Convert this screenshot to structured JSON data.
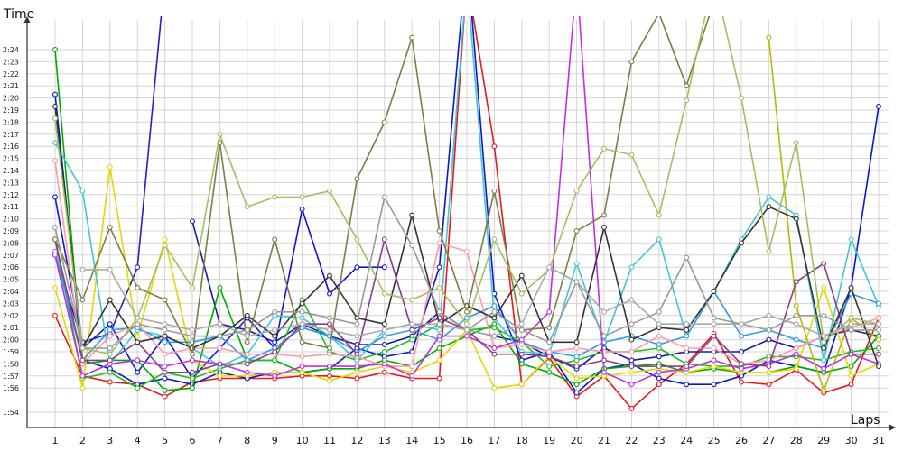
{
  "chart_data": {
    "type": "line",
    "ylabel": "Time",
    "xlabel": "Laps",
    "x": [
      1,
      2,
      3,
      4,
      5,
      6,
      7,
      8,
      9,
      10,
      11,
      12,
      13,
      14,
      15,
      16,
      17,
      18,
      19,
      20,
      21,
      22,
      23,
      24,
      25,
      26,
      27,
      28,
      29,
      30,
      31
    ],
    "y_ticks": [
      "1:54",
      "1:56",
      "1:57",
      "1:58",
      "1:59",
      "2:00",
      "2:01",
      "2:02",
      "2:03",
      "2:04",
      "2:05",
      "2:06",
      "2:07",
      "2:08",
      "2:09",
      "2:10",
      "2:11",
      "2:12",
      "2:13",
      "2:14",
      "2:15",
      "2:16",
      "2:17",
      "2:18",
      "2:19",
      "2:20",
      "2:21",
      "2:22",
      "2:23",
      "2:24"
    ],
    "ylim_seconds": [
      112.0,
      147.0
    ],
    "y_unit": "seconds (m:ss)",
    "grid": true,
    "legend": "none",
    "series": [
      {
        "color": "#e8191b",
        "values": [
          122.0,
          117.0,
          116.5,
          116.3,
          115.3,
          116.5,
          116.8,
          116.8,
          116.8,
          117.0,
          117.0,
          116.8,
          117.3,
          116.8,
          116.8,
          150.0,
          136.0,
          116.3,
          118.5,
          115.3,
          117.0,
          114.3,
          116.3,
          118.0,
          120.5,
          116.5,
          116.3,
          117.5,
          115.6,
          116.3,
          121.8
        ]
      },
      {
        "color": "#0b18c8",
        "values": [
          140.3,
          118.3,
          117.6,
          116.3,
          116.8,
          116.3,
          117.3,
          116.8,
          117.3,
          117.3,
          117.6,
          119.3,
          118.6,
          119.0,
          126.0,
          152.0,
          123.8,
          118.3,
          119.0,
          115.6,
          117.6,
          118.0,
          116.8,
          116.3,
          116.3,
          117.0,
          118.3,
          117.8,
          117.3,
          124.3,
          139.3
        ]
      },
      {
        "color": "#1212d8",
        "values": [
          131.8,
          119.3,
          121.3,
          117.3,
          120.3,
          116.8,
          119.3,
          121.8,
          119.3,
          130.8,
          123.8,
          126.0,
          126.0,
          null,
          null,
          null,
          null,
          null,
          null,
          null,
          null,
          null,
          null,
          null,
          null,
          null,
          null,
          null,
          null,
          null,
          null
        ]
      },
      {
        "color": "#2222b8",
        "values": [
          127.0,
          119.8,
          120.5,
          126.0,
          150.0,
          null,
          null,
          null,
          null,
          null,
          null,
          null,
          null,
          null,
          null,
          null,
          null,
          null,
          null,
          null,
          null,
          null,
          null,
          null,
          null,
          null,
          null,
          null,
          null,
          null,
          null
        ]
      },
      {
        "color": "#1a1a9e",
        "values": [
          null,
          null,
          null,
          null,
          null,
          129.8,
          121.3,
          120.8,
          119.8,
          121.3,
          120.3,
          119.6,
          119.6,
          120.3,
          122.3,
          120.8,
          120.3,
          119.8,
          118.6,
          117.6,
          119.3,
          118.3,
          118.6,
          119.0,
          119.0,
          119.0,
          120.0,
          119.3,
          120.3,
          120.8,
          120.3
        ]
      },
      {
        "color": "#00aa00",
        "values": [
          144.0,
          118.0,
          118.3,
          118.3,
          115.8,
          116.0,
          124.3,
          118.3,
          118.3,
          117.3,
          117.6,
          117.6,
          118.3,
          117.8,
          119.3,
          120.3,
          121.3,
          118.0,
          117.3,
          116.3,
          117.6,
          117.8,
          118.0,
          117.3,
          117.6,
          117.3,
          117.3,
          117.8,
          117.3,
          117.8,
          120.3
        ]
      },
      {
        "color": "#22bb22",
        "values": [
          128.3,
          116.8,
          117.3,
          116.0,
          117.3,
          116.8,
          117.6,
          118.3,
          118.3,
          123.3,
          119.0,
          118.3,
          119.0,
          120.0,
          121.3,
          120.8,
          121.0,
          119.8,
          117.8,
          118.3,
          119.0,
          119.0,
          119.3,
          118.0,
          117.8,
          117.8,
          118.6,
          118.6,
          118.3,
          119.0,
          119.3
        ]
      },
      {
        "color": "#e3d800",
        "values": [
          124.3,
          116.0,
          134.3,
          120.3,
          128.3,
          118.3,
          117.0,
          117.0,
          117.3,
          117.3,
          116.6,
          117.3,
          117.8,
          117.3,
          118.3,
          120.8,
          116.0,
          116.3,
          118.6,
          116.8,
          117.0,
          117.3,
          117.6,
          117.3,
          117.8,
          117.3,
          117.3,
          117.6,
          124.3,
          117.0,
          118.0
        ]
      },
      {
        "color": "#b8b800",
        "values": [
          null,
          null,
          null,
          null,
          null,
          null,
          null,
          null,
          null,
          null,
          null,
          null,
          null,
          null,
          null,
          null,
          null,
          null,
          null,
          null,
          null,
          null,
          null,
          null,
          null,
          null,
          145.0,
          122.8,
          115.8,
          121.8,
          120.0
        ]
      },
      {
        "color": "#44c4d8",
        "values": [
          136.3,
          132.3,
          118.0,
          120.8,
          120.3,
          119.3,
          117.8,
          118.8,
          122.0,
          121.8,
          120.3,
          118.3,
          120.8,
          121.3,
          120.8,
          150.0,
          121.8,
          119.0,
          118.8,
          126.3,
          119.8,
          126.0,
          128.3,
          120.3,
          124.0,
          128.3,
          131.8,
          130.3,
          118.3,
          128.3,
          122.8
        ]
      },
      {
        "color": "#2f9ae8",
        "values": [
          127.3,
          118.3,
          120.8,
          121.0,
          119.8,
          119.8,
          120.3,
          118.3,
          119.3,
          121.0,
          120.3,
          119.0,
          120.3,
          120.8,
          120.0,
          121.8,
          122.8,
          119.8,
          119.0,
          118.6,
          119.8,
          120.3,
          119.6,
          120.3,
          124.0,
          120.3,
          120.8,
          120.0,
          119.3,
          123.8,
          123.0
        ]
      },
      {
        "color": "#ff9aa8",
        "values": [
          134.8,
          118.0,
          120.3,
          121.3,
          118.8,
          119.3,
          119.3,
          118.8,
          118.8,
          118.6,
          118.8,
          118.6,
          117.8,
          117.8,
          128.0,
          127.3,
          119.3,
          119.6,
          119.0,
          119.3,
          119.0,
          119.0,
          120.3,
          119.3,
          119.3,
          118.0,
          118.3,
          119.3,
          120.3,
          121.0,
          121.8
        ]
      },
      {
        "color": "#c030e0",
        "values": [
          127.0,
          117.0,
          118.0,
          118.3,
          117.8,
          118.3,
          118.0,
          117.3,
          117.0,
          117.8,
          117.8,
          117.8,
          118.0,
          117.0,
          120.3,
          120.3,
          119.3,
          120.0,
          122.3,
          150.0,
          117.3,
          116.3,
          117.3,
          117.6,
          118.3,
          117.6,
          118.0,
          118.8,
          117.6,
          118.8,
          118.0
        ]
      },
      {
        "color": "#8a3c8a",
        "values": [
          128.3,
          118.3,
          118.3,
          119.8,
          117.3,
          117.3,
          118.0,
          118.0,
          119.0,
          121.3,
          121.3,
          118.8,
          128.3,
          120.8,
          121.8,
          120.8,
          118.8,
          118.8,
          118.6,
          117.8,
          118.3,
          117.8,
          117.8,
          117.8,
          120.3,
          118.0,
          117.8,
          124.8,
          126.3,
          118.8,
          118.8
        ]
      },
      {
        "color": "#333333",
        "values": [
          139.3,
          119.3,
          123.3,
          119.8,
          120.3,
          119.3,
          120.3,
          122.0,
          120.3,
          123.0,
          125.3,
          121.8,
          121.3,
          130.3,
          121.3,
          122.8,
          121.8,
          125.3,
          119.8,
          119.8,
          129.3,
          120.0,
          121.0,
          120.8,
          124.0,
          128.0,
          131.0,
          130.0,
          119.3,
          124.3,
          117.8
        ]
      },
      {
        "color": "#7d7d45",
        "values": [
          128.3,
          123.3,
          129.3,
          124.3,
          123.3,
          118.8,
          136.3,
          119.8,
          128.3,
          119.8,
          119.3,
          133.3,
          138.0,
          145.0,
          129.0,
          122.3,
          132.3,
          120.8,
          121.0,
          129.0,
          130.3,
          143.0,
          147.0,
          141.0,
          148.0,
          148.0,
          148.0,
          148.0,
          148.0,
          148.0,
          148.0
        ]
      },
      {
        "color": "#a0c060",
        "values": [
          138.3,
          119.3,
          118.8,
          121.8,
          127.8,
          124.3,
          137.0,
          131.0,
          131.8,
          131.8,
          132.3,
          128.3,
          123.8,
          123.3,
          124.3,
          121.3,
          128.3,
          123.8,
          125.8,
          132.3,
          135.8,
          135.3,
          130.3,
          139.8,
          150.0,
          140.0,
          127.3,
          136.3,
          119.8,
          121.8,
          121.3
        ]
      },
      {
        "color": "#999999",
        "values": [
          129.3,
          119.3,
          119.3,
          121.3,
          120.8,
          120.3,
          120.3,
          120.8,
          122.3,
          122.3,
          121.8,
          121.3,
          131.8,
          127.8,
          122.3,
          120.8,
          122.3,
          120.8,
          119.8,
          124.8,
          120.3,
          121.3,
          122.3,
          126.8,
          121.8,
          121.3,
          120.8,
          122.0,
          122.0,
          120.8,
          120.8
        ]
      },
      {
        "color": "#a8a8a8",
        "values": [
          null,
          125.8,
          125.8,
          121.8,
          121.3,
          120.8,
          121.3,
          120.3,
          120.8,
          121.3,
          120.8,
          120.3,
          120.8,
          121.3,
          121.3,
          120.8,
          120.3,
          121.3,
          126.0,
          124.8,
          122.3,
          123.3,
          121.3,
          121.3,
          121.3,
          121.3,
          122.0,
          121.3,
          120.3,
          121.3,
          121.3
        ]
      }
    ]
  }
}
